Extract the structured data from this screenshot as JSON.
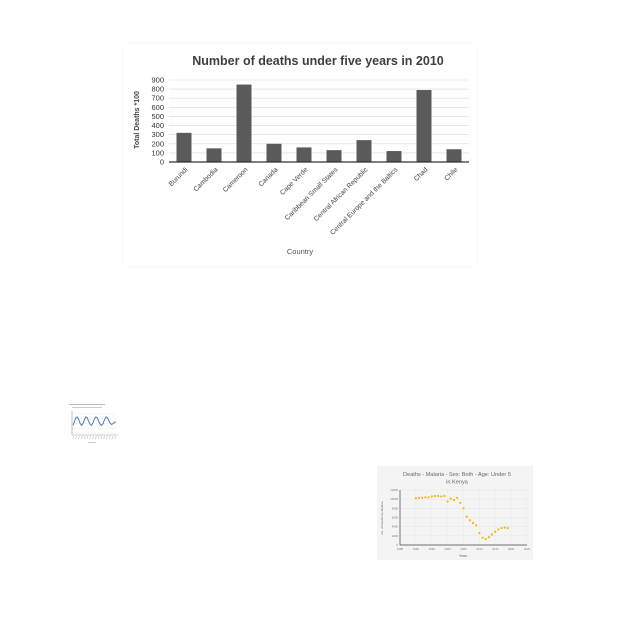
{
  "chart_data": [
    {
      "type": "bar",
      "title": "Number of deaths under five years in 2010",
      "xlabel": "Country",
      "ylabel": "Total Deaths *100",
      "ylim": [
        0,
        900
      ],
      "yticks": [
        0,
        100,
        200,
        300,
        400,
        500,
        600,
        700,
        800,
        900
      ],
      "categories": [
        "Burundi",
        "Cambodia",
        "Cameroon",
        "Canada",
        "Cape Verde",
        "Caribbean Small States",
        "Central African Republic",
        "Central Europe and the Baltics",
        "Chad",
        "Chile"
      ],
      "values": [
        320,
        150,
        850,
        200,
        160,
        130,
        240,
        120,
        790,
        140
      ],
      "color": "#5a5a5a",
      "grid": true,
      "legend": false
    },
    {
      "type": "line",
      "title": "",
      "color": "#3a6fb5",
      "x": [
        0,
        1,
        2,
        3,
        4,
        5,
        6,
        7,
        8,
        9,
        10,
        11,
        12,
        13,
        14,
        15,
        16,
        17,
        18,
        19,
        20,
        21,
        22,
        23,
        24,
        25,
        26,
        27,
        28,
        29,
        30
      ],
      "y": [
        4,
        6,
        8,
        8.5,
        7,
        5,
        4,
        5,
        7,
        8.5,
        8,
        6,
        4.5,
        4,
        5.5,
        7.5,
        8.5,
        8,
        6,
        4.5,
        4,
        5,
        7,
        8.5,
        8,
        6.5,
        5,
        4.5,
        5,
        5.5,
        6
      ],
      "ylim": [
        0,
        10
      ],
      "grid": true
    },
    {
      "type": "scatter",
      "title": "Deaths - Malaria - Sex: Both - Age: Under 5 in Kenya",
      "xlabel": "Years",
      "ylabel": "No. of Deaths by Malaria",
      "xlim": [
        1985,
        2025
      ],
      "ylim": [
        0,
        12000
      ],
      "xticks": [
        1985,
        1990,
        1995,
        2000,
        2005,
        2010,
        2015,
        2020,
        2025
      ],
      "yticks": [
        0,
        2000,
        4000,
        6000,
        8000,
        10000,
        12000
      ],
      "color": "#f2b705",
      "x": [
        1990,
        1991,
        1992,
        1993,
        1994,
        1995,
        1996,
        1997,
        1998,
        1999,
        2000,
        2001,
        2002,
        2003,
        2004,
        2005,
        2006,
        2007,
        2008,
        2009,
        2010,
        2011,
        2012,
        2013,
        2014,
        2015,
        2016,
        2017,
        2018,
        2019
      ],
      "y": [
        10200,
        10300,
        10300,
        10400,
        10400,
        10600,
        10700,
        10700,
        10600,
        10700,
        9500,
        10100,
        9800,
        10300,
        9200,
        8000,
        6200,
        5400,
        4800,
        4300,
        2600,
        1600,
        1300,
        1700,
        2300,
        2900,
        3400,
        3700,
        3800,
        3700
      ],
      "grid": true
    }
  ]
}
